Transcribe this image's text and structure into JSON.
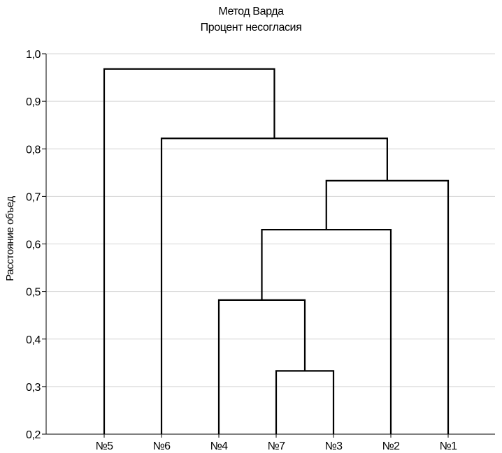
{
  "chart_data": {
    "type": "dendrogram",
    "title": "Метод Варда",
    "subtitle": "Процент несогласия",
    "xlabel": "",
    "ylabel": "Расстояние объед",
    "ylim": [
      0.2,
      1.0
    ],
    "yticks": [
      "0,2",
      "0,3",
      "0,4",
      "0,5",
      "0,6",
      "0,7",
      "0,8",
      "0,9",
      "1,0"
    ],
    "leaves": [
      "№5",
      "№6",
      "№4",
      "№7",
      "№3",
      "№2",
      "№1"
    ],
    "merges": [
      {
        "members": [
          "№7",
          "№3"
        ],
        "height": 0.333
      },
      {
        "members": [
          "№4",
          "№7",
          "№3"
        ],
        "height": 0.482
      },
      {
        "members": [
          "№4",
          "№7",
          "№3",
          "№2"
        ],
        "height": 0.63
      },
      {
        "members": [
          "№4",
          "№7",
          "№3",
          "№2",
          "№1"
        ],
        "height": 0.733
      },
      {
        "members": [
          "№6",
          "№4",
          "№7",
          "№3",
          "№2",
          "№1"
        ],
        "height": 0.822
      },
      {
        "members": [
          "№5",
          "№6",
          "№4",
          "№7",
          "№3",
          "№2",
          "№1"
        ],
        "height": 0.968
      }
    ],
    "grid": true,
    "colors": {
      "line": "#000000",
      "grid": "#d4d4d4"
    }
  }
}
